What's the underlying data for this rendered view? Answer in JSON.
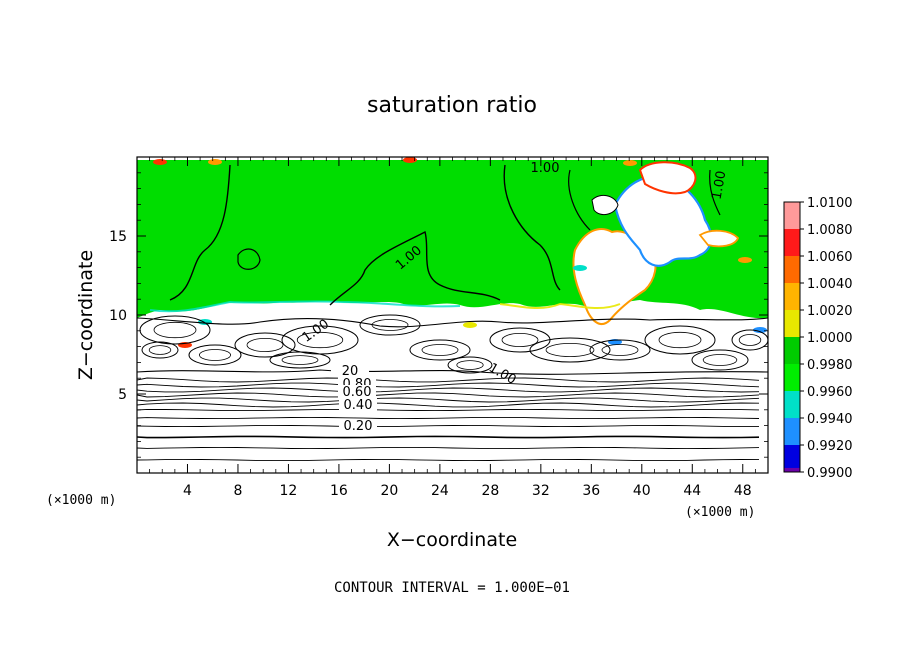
{
  "chart_data": {
    "type": "heatmap",
    "title": "saturation ratio",
    "xlabel": "X−coordinate",
    "ylabel": "Z−coordinate",
    "x_unit": "(×1000 m)",
    "y_unit": "(×1000 m)",
    "xlim": [
      0,
      50
    ],
    "ylim": [
      0,
      20
    ],
    "x_ticks": [
      4,
      8,
      12,
      16,
      20,
      24,
      28,
      32,
      36,
      40,
      44,
      48
    ],
    "y_ticks": [
      5,
      10,
      15
    ],
    "colorbar": {
      "levels": [
        "1.0100",
        "1.0080",
        "1.0060",
        "1.0040",
        "1.0020",
        "1.0000",
        "0.9980",
        "0.9960",
        "0.9940",
        "0.9920",
        "0.9900"
      ],
      "colors": [
        "#ff9a9a",
        "#ff1a1a",
        "#ff6a00",
        "#ffb400",
        "#e8e800",
        "#00cc00",
        "#00ee00",
        "#00e0c8",
        "#1e90ff",
        "#0000e0",
        "#6a00a8"
      ]
    },
    "contour_labels": [
      "1.00",
      "1.00",
      "1.00",
      "1.00",
      "1.00",
      "1.00",
      "20",
      "0.80",
      "0.60",
      "0.40",
      "0.20"
    ],
    "contour_interval_text": "CONTOUR INTERVAL = 1.000E−01",
    "field_colors": {
      "saturated": "#00dd00",
      "cloud_free": "#ffffff",
      "edge_blue": "#1e90ff",
      "edge_red": "#ff3300",
      "edge_orange": "#ff9900",
      "edge_yellow": "#e8e800",
      "edge_cyan": "#00e0c8"
    }
  }
}
